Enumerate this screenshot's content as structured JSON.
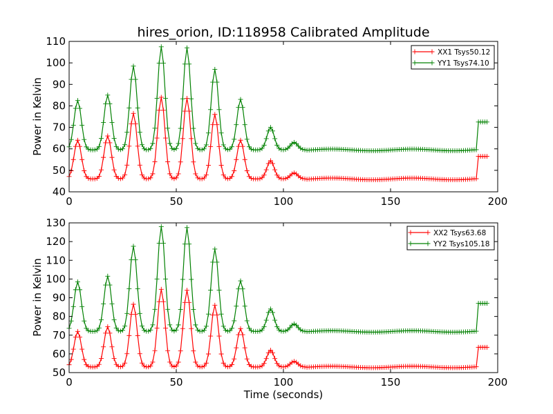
{
  "chart_data": [
    {
      "type": "line",
      "title": "hires_orion, ID:118958 Calibrated Amplitude",
      "xlabel": "",
      "ylabel": "Power in Kelvin",
      "xlim": [
        0,
        200
      ],
      "ylim": [
        40,
        110
      ],
      "xticks": [
        "0",
        "50",
        "100",
        "150",
        "200"
      ],
      "yticks": [
        "40",
        "50",
        "60",
        "70",
        "80",
        "90",
        "100",
        "110"
      ],
      "legend_position": "top-right",
      "grid": false,
      "marker": "+",
      "sample_interval_s": 1,
      "x_range": [
        0,
        195
      ],
      "series": [
        {
          "name": "XX1 Tsys50.12",
          "color": "#ff0000",
          "baseline": 46,
          "step_value": 56.5,
          "step_at": 191,
          "peaks": [
            [
              4,
              64
            ],
            [
              18,
              66
            ],
            [
              30,
              76.5
            ],
            [
              43,
              84
            ],
            [
              55,
              83.5
            ],
            [
              68,
              76
            ],
            [
              80,
              64
            ],
            [
              94,
              54.5
            ],
            [
              105,
              48.8
            ]
          ]
        },
        {
          "name": "YY1 Tsys74.10",
          "color": "#008000",
          "baseline": 59.5,
          "step_value": 72.5,
          "step_at": 191,
          "peaks": [
            [
              4,
              82.5
            ],
            [
              18,
              85
            ],
            [
              30,
              98.5
            ],
            [
              43,
              107.5
            ],
            [
              55,
              107
            ],
            [
              68,
              97
            ],
            [
              80,
              83
            ],
            [
              94,
              70
            ],
            [
              105,
              63
            ]
          ]
        }
      ]
    },
    {
      "type": "line",
      "title": "",
      "xlabel": "Time (seconds)",
      "ylabel": "Power in Kelvin",
      "xlim": [
        0,
        200
      ],
      "ylim": [
        50,
        130
      ],
      "xticks": [
        "0",
        "50",
        "100",
        "150",
        "200"
      ],
      "yticks": [
        "50",
        "60",
        "70",
        "80",
        "90",
        "100",
        "110",
        "120",
        "130"
      ],
      "legend_position": "top-right",
      "grid": false,
      "marker": "+",
      "sample_interval_s": 1,
      "x_range": [
        0,
        195
      ],
      "series": [
        {
          "name": "XX2 Tsys63.68",
          "color": "#ff0000",
          "baseline": 53,
          "step_value": 63.5,
          "step_at": 191,
          "peaks": [
            [
              4,
              72
            ],
            [
              18,
              74.5
            ],
            [
              30,
              86.5
            ],
            [
              43,
              94.5
            ],
            [
              55,
              94
            ],
            [
              68,
              86
            ],
            [
              80,
              73.5
            ],
            [
              94,
              62
            ],
            [
              105,
              56
            ]
          ]
        },
        {
          "name": "YY2 Tsys105.18",
          "color": "#008000",
          "baseline": 72,
          "step_value": 87,
          "step_at": 191,
          "peaks": [
            [
              4,
              98.5
            ],
            [
              18,
              101.5
            ],
            [
              30,
              117.5
            ],
            [
              43,
              128
            ],
            [
              55,
              127.5
            ],
            [
              68,
              116
            ],
            [
              80,
              99
            ],
            [
              94,
              84
            ],
            [
              105,
              76
            ]
          ]
        }
      ]
    }
  ]
}
